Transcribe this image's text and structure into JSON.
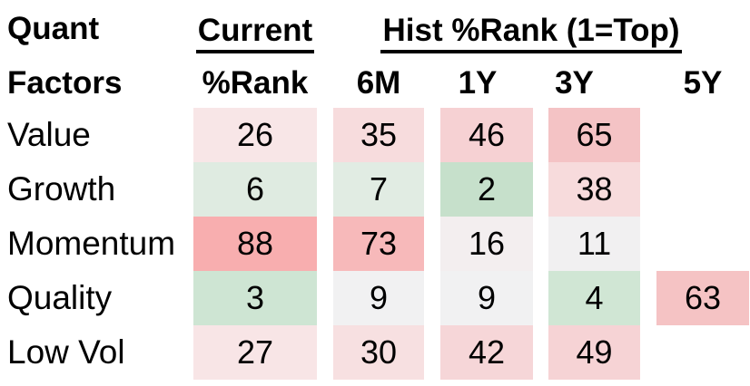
{
  "chart_data": {
    "type": "heatmap",
    "title": "Quant Factors",
    "row_header_line1": "Quant",
    "row_header_line2": "Factors",
    "group_headers": {
      "current": "Current",
      "hist": "Hist %Rank (1=Top)"
    },
    "columns": [
      "%Rank",
      "6M",
      "1Y",
      "3Y",
      "5Y"
    ],
    "rows": [
      {
        "label": "Value",
        "cells": [
          {
            "value": 26,
            "color": "#f8e6e7"
          },
          {
            "value": 35,
            "color": "#f7dcdd"
          },
          {
            "value": 46,
            "color": "#f6d1d3"
          },
          {
            "value": 65,
            "color": "#f4c3c5"
          },
          {
            "value": null,
            "color": null
          }
        ]
      },
      {
        "label": "Growth",
        "cells": [
          {
            "value": 6,
            "color": "#dfebe1"
          },
          {
            "value": 7,
            "color": "#e1ece3"
          },
          {
            "value": 2,
            "color": "#c6e0cb"
          },
          {
            "value": 38,
            "color": "#f7dbdc"
          },
          {
            "value": null,
            "color": null
          }
        ]
      },
      {
        "label": "Momentum",
        "cells": [
          {
            "value": 88,
            "color": "#f8aeaf"
          },
          {
            "value": 73,
            "color": "#f7b9ba"
          },
          {
            "value": 16,
            "color": "#f3eeef"
          },
          {
            "value": 11,
            "color": "#f1f0f1"
          },
          {
            "value": null,
            "color": null
          }
        ]
      },
      {
        "label": "Quality",
        "cells": [
          {
            "value": 3,
            "color": "#cee5d3"
          },
          {
            "value": 9,
            "color": "#f1f1f2"
          },
          {
            "value": 9,
            "color": "#f1f1f2"
          },
          {
            "value": 4,
            "color": "#d0e6d4"
          },
          {
            "value": 63,
            "color": "#f5c3c4"
          }
        ]
      },
      {
        "label": "Low Vol",
        "cells": [
          {
            "value": 27,
            "color": "#f8e5e6"
          },
          {
            "value": 30,
            "color": "#f7e0e1"
          },
          {
            "value": 42,
            "color": "#f6d6d8"
          },
          {
            "value": 49,
            "color": "#f6d3d5"
          },
          {
            "value": null,
            "color": null
          }
        ]
      }
    ],
    "palette": {
      "low_rank_green": "#c6e0cb",
      "neutral_mid": "#f1f1f2",
      "high_rank_red": "#f8aeaf"
    },
    "layout_hints": {
      "value_range": [
        1,
        100
      ],
      "legend": "none",
      "grid": "off"
    }
  }
}
